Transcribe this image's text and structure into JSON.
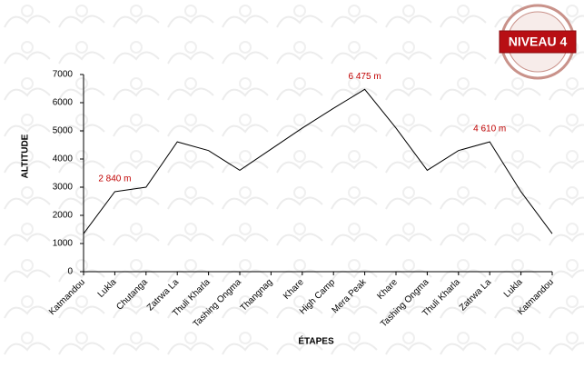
{
  "chart_data": {
    "type": "line",
    "badge": "NIVEAU 4",
    "x_label": "ÉTAPES",
    "y_label": "ALTITUDE",
    "categories": [
      "Katmandou",
      "Lukla",
      "Chutanga",
      "Zatrwa La",
      "Thuli Kharla",
      "Tashing Ongma",
      "Thangnag",
      "Khare",
      "High Camp",
      "Mera Peak",
      "Khare",
      "Tashing Ongma",
      "Thuli Kharla",
      "Zatrwa La",
      "Lukla",
      "Katmandou"
    ],
    "values": [
      1350,
      2840,
      3000,
      4610,
      4300,
      3600,
      4350,
      5100,
      5800,
      6475,
      5100,
      3600,
      4300,
      4610,
      2840,
      1350
    ],
    "value_labels": [
      null,
      "2 840 m",
      null,
      null,
      null,
      null,
      null,
      null,
      null,
      "6 475 m",
      null,
      null,
      null,
      "4 610 m",
      null,
      null
    ],
    "color": "#000000",
    "label_color": "#c00000",
    "ylim": [
      0,
      7000
    ],
    "yticks": [
      0,
      1000,
      2000,
      3000,
      4000,
      5000,
      6000,
      7000
    ]
  }
}
